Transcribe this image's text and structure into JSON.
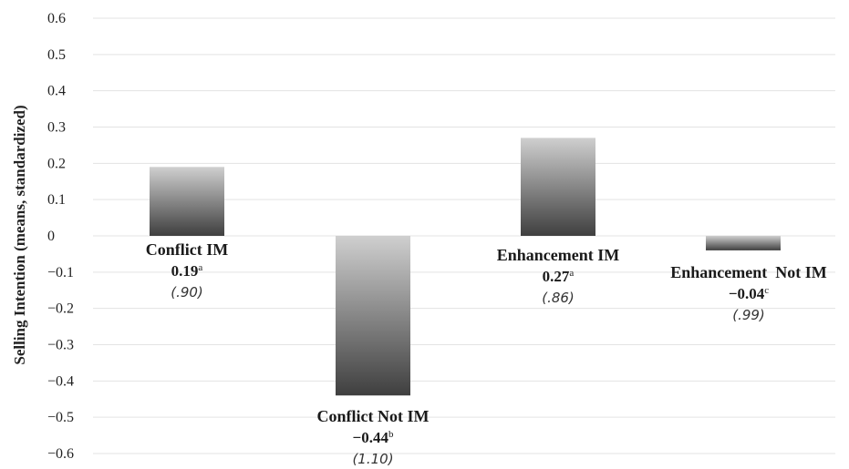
{
  "chart_data": {
    "type": "bar",
    "ylabel": "Selling Intention (means, standardized)",
    "xlabel": "",
    "ylim": [
      -0.6,
      0.6
    ],
    "yticks": [
      "0.6",
      "0.5",
      "0.4",
      "0.3",
      "0.2",
      "0.1",
      "0",
      "−0.1",
      "−0.2",
      "−0.3",
      "−0.4",
      "−0.5",
      "−0.6"
    ],
    "ytick_values": [
      0.6,
      0.5,
      0.4,
      0.3,
      0.2,
      0.1,
      0,
      -0.1,
      -0.2,
      -0.3,
      -0.4,
      -0.5,
      -0.6
    ],
    "grid": true,
    "categories": [
      "Conflict IM",
      "Conflict Not IM",
      "Enhancement IM",
      "Enhancement  Not IM"
    ],
    "values": [
      0.19,
      -0.44,
      0.27,
      -0.04
    ],
    "value_labels": [
      "0.19",
      "−0.44",
      "0.27",
      "−0.04"
    ],
    "superscripts": [
      "a",
      "b",
      "a",
      "c"
    ],
    "sd_labels": [
      "(.90)",
      "(1.10)",
      "(.86)",
      "(.99)"
    ],
    "bar_gradient": {
      "light": "#cfcfcf",
      "dark": "#3f3f3f"
    }
  }
}
